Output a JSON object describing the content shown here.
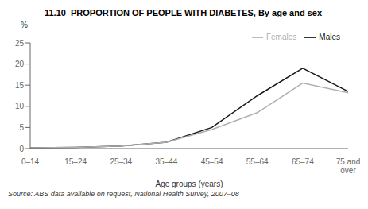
{
  "chart_data": {
    "type": "line",
    "title": "11.10  PROPORTION OF PEOPLE WITH DIABETES, By age and sex",
    "xlabel": "Age groups (years)",
    "ylabel": "%",
    "annotations": [
      "Source: ABS data available on request, National Health Survey, 2007–08"
    ],
    "categories": [
      "0–14",
      "15–24",
      "25–34",
      "35–44",
      "45–54",
      "55–64",
      "65–74",
      "75 and\nover"
    ],
    "series": [
      {
        "name": "Males",
        "color": "#1a1a1a",
        "values": [
          0.2,
          0.3,
          0.6,
          1.5,
          5.0,
          12.5,
          19.0,
          13.5
        ]
      },
      {
        "name": "Females",
        "color": "#b0b0b0",
        "values": [
          0.2,
          0.3,
          0.6,
          1.5,
          4.5,
          8.5,
          15.5,
          13.2
        ]
      }
    ],
    "ylim": [
      0,
      25
    ],
    "yticks": [
      0,
      5,
      10,
      15,
      20,
      25
    ],
    "grid": false,
    "legend": "upper right"
  }
}
